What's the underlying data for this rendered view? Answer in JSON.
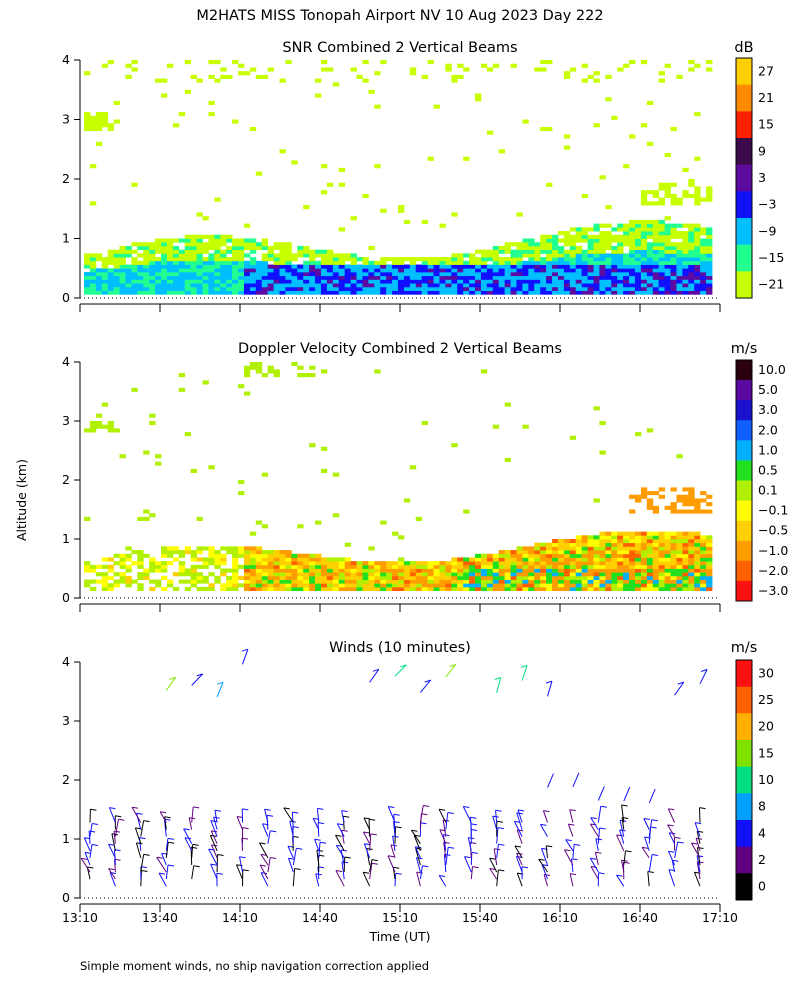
{
  "figure": {
    "title": "M2HATS MISS Tonopah Airport NV  10 Aug 2023 Day 222",
    "ylabel": "Altitude (km)",
    "xlabel": "Time (UT)",
    "footnote": "Simple moment winds, no ship navigation correction applied"
  },
  "chart_data": [
    {
      "type": "heatmap",
      "title": "SNR Combined 2 Vertical Beams",
      "unit": "dB",
      "ylim": [
        0,
        4
      ],
      "yticks": [
        "0",
        "1",
        "2",
        "3",
        "4"
      ],
      "colorbar": {
        "ticks": [
          "27",
          "21",
          "15",
          "9",
          "3",
          "−3",
          "−9",
          "−15",
          "−21"
        ],
        "colors": [
          "#ffd000",
          "#ff8c00",
          "#ff2000",
          "#3a0a4a",
          "#5c0aa0",
          "#1010ff",
          "#00bfff",
          "#20ff90",
          "#c8ff00"
        ]
      }
    },
    {
      "type": "heatmap",
      "title": "Doppler Velocity Combined 2 Vertical Beams",
      "unit": "m/s",
      "ylim": [
        0,
        4
      ],
      "yticks": [
        "0",
        "1",
        "2",
        "3",
        "4"
      ],
      "colorbar": {
        "ticks": [
          "10.0",
          "5.0",
          "3.0",
          "2.0",
          "1.0",
          "0.5",
          "0.1",
          "−0.1",
          "−0.5",
          "−1.0",
          "−2.0",
          "−3.0"
        ],
        "colors": [
          "#2a0010",
          "#5a0aa0",
          "#1a10d0",
          "#1060ff",
          "#00b0ff",
          "#20e020",
          "#b0f000",
          "#ffff00",
          "#ffd000",
          "#ff9c00",
          "#ff6000",
          "#ff1010"
        ]
      }
    },
    {
      "type": "wind-barbs",
      "title": "Winds (10 minutes)",
      "unit": "m/s",
      "ylim": [
        0,
        4
      ],
      "yticks": [
        "0",
        "1",
        "2",
        "3",
        "4"
      ],
      "colorbar": {
        "ticks": [
          "30",
          "25",
          "20",
          "15",
          "10",
          "8",
          "4",
          "2",
          "0"
        ],
        "colors": [
          "#ff1010",
          "#ff6000",
          "#ffb000",
          "#80e000",
          "#00e080",
          "#00a0ff",
          "#1010ff",
          "#600080",
          "#000000"
        ]
      }
    }
  ],
  "time_axis": {
    "tick_labels": [
      "13:10",
      "13:40",
      "14:10",
      "14:40",
      "15:10",
      "15:40",
      "16:10",
      "16:40",
      "17:10"
    ]
  }
}
